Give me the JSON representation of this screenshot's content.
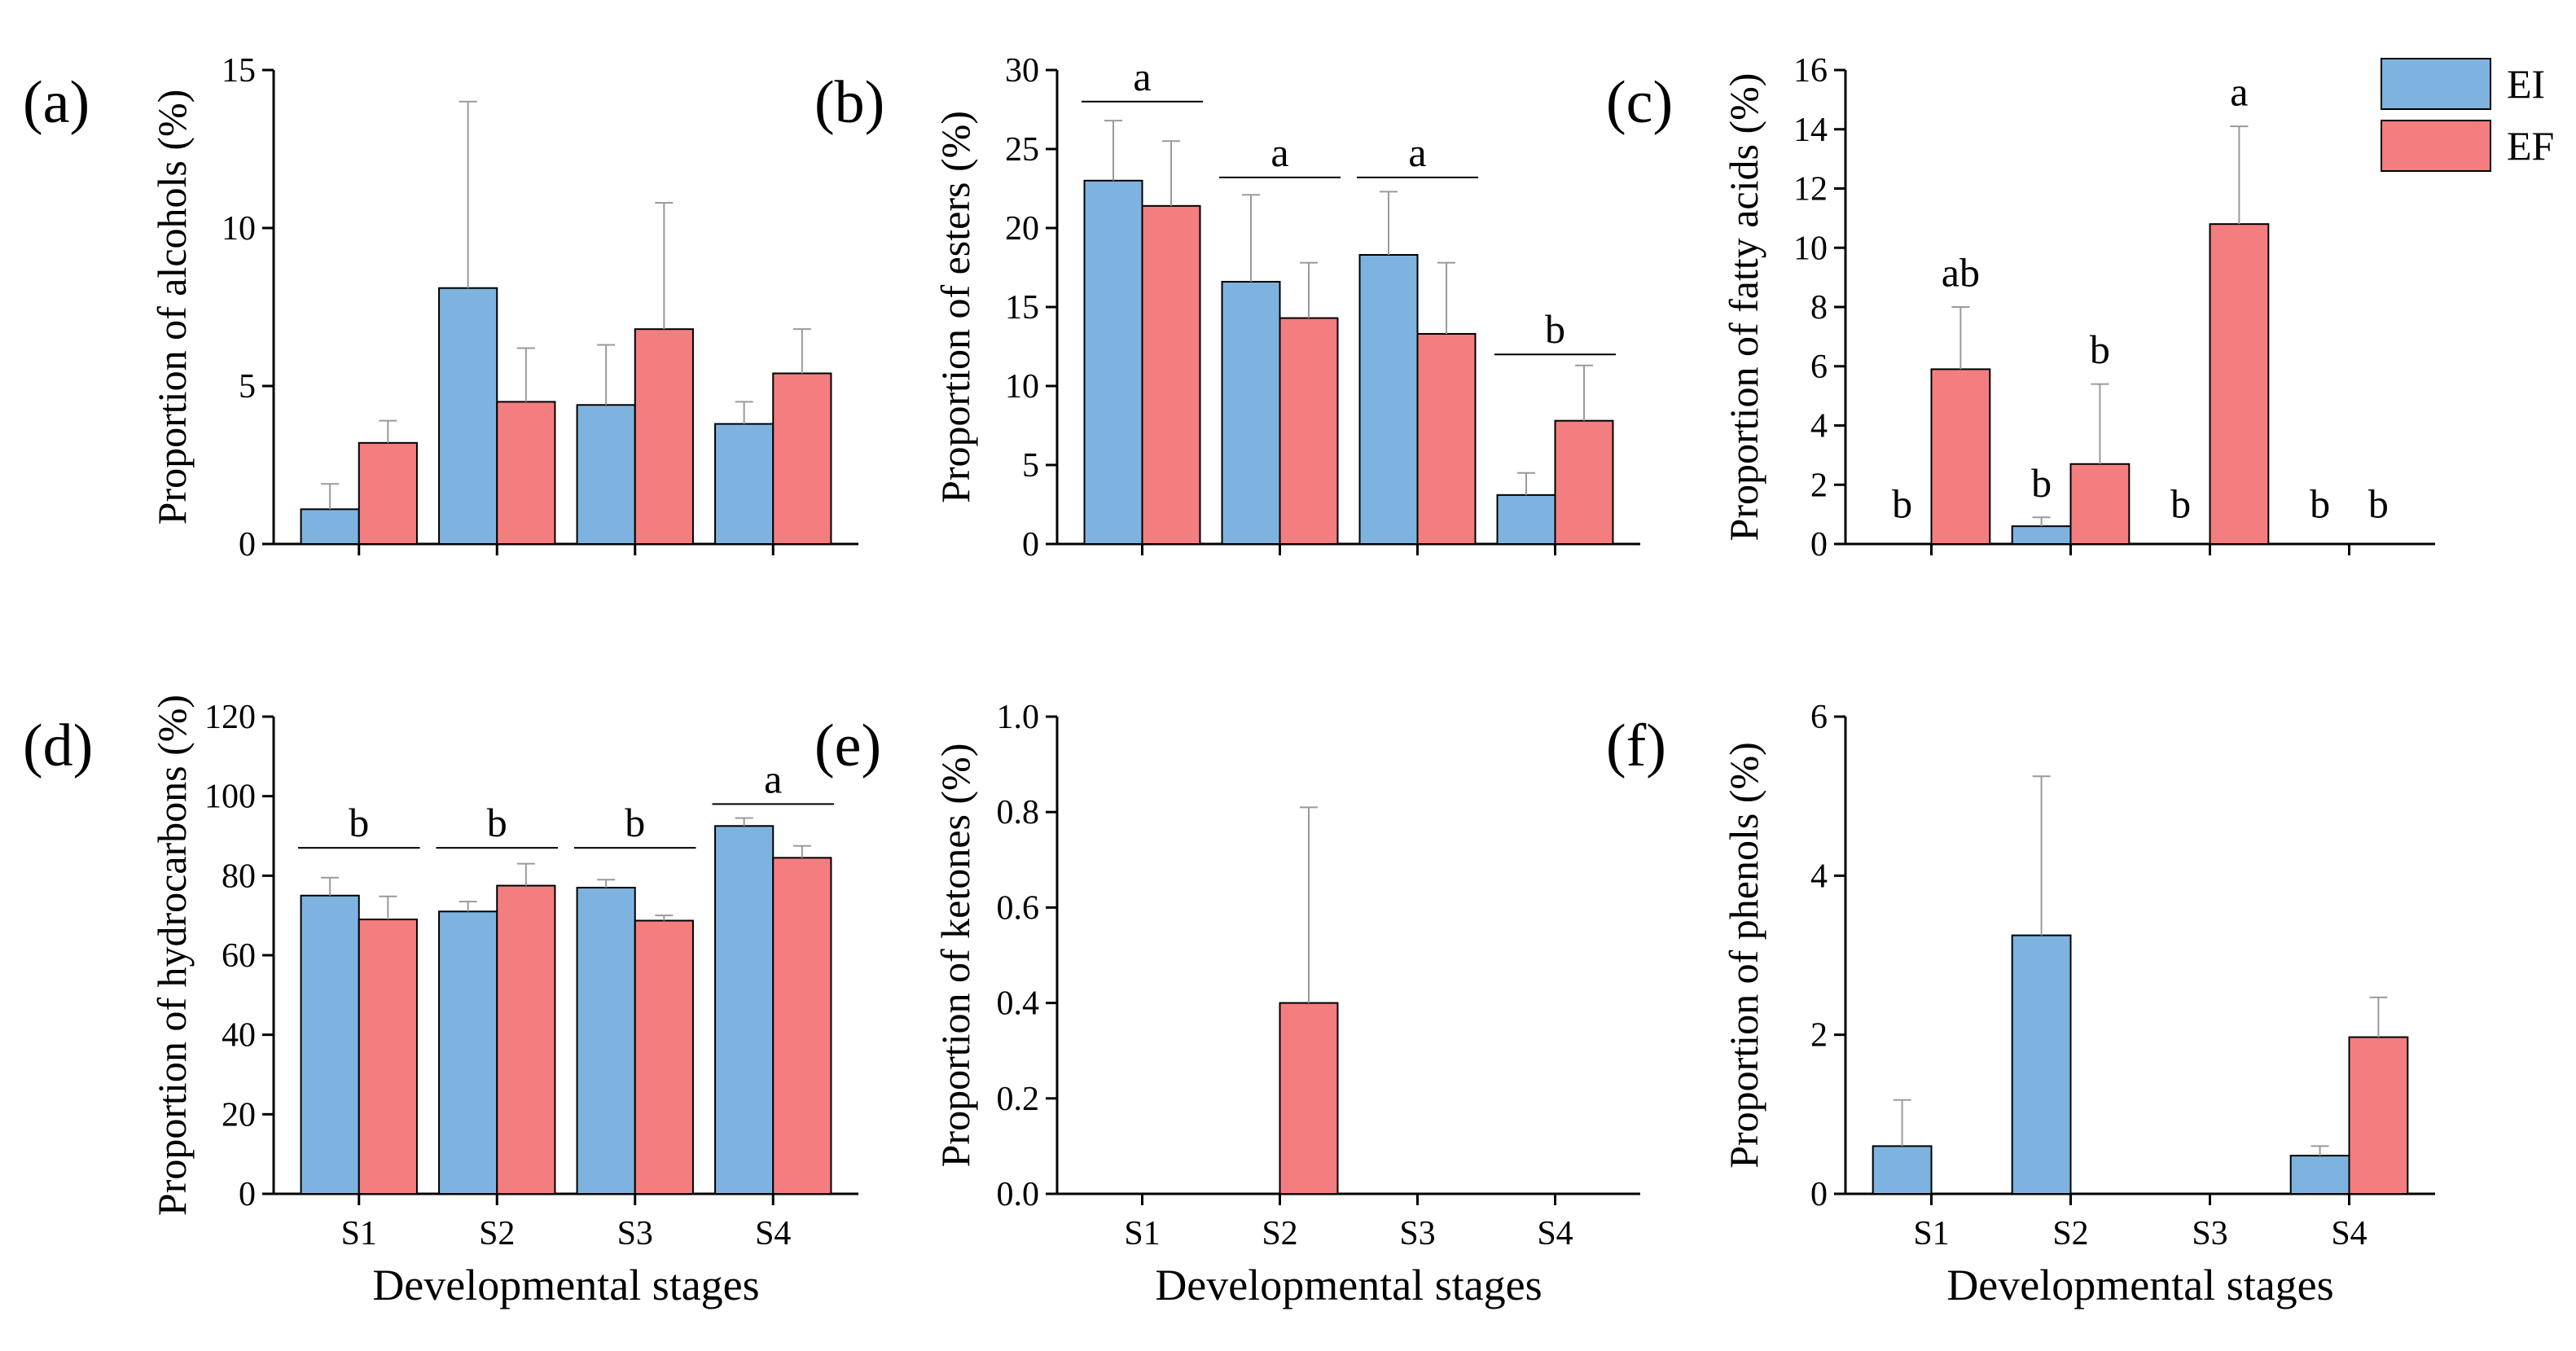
{
  "legend": {
    "entries": [
      {
        "label": "EI",
        "color": "#7fb3df"
      },
      {
        "label": "EF",
        "color": "#f47d7f"
      }
    ]
  },
  "chart_data": [
    {
      "type": "bar",
      "panel_label": "(a)",
      "categories": [
        "S1",
        "S2",
        "S3",
        "S4"
      ],
      "show_xticklabels": false,
      "xlabel": "",
      "ylabel": "Proportion of alcohols (%)",
      "ylim": [
        0,
        15
      ],
      "yticks": [
        "0",
        "5",
        "10",
        "15"
      ],
      "series": [
        {
          "name": "EI",
          "values": [
            1.1,
            8.1,
            4.4,
            3.8
          ],
          "errors": [
            0.8,
            5.9,
            1.9,
            0.7
          ]
        },
        {
          "name": "EF",
          "values": [
            3.2,
            4.5,
            6.8,
            5.4
          ],
          "errors": [
            0.7,
            1.7,
            4.0,
            1.4
          ]
        }
      ],
      "annotations": []
    },
    {
      "type": "bar",
      "panel_label": "(b)",
      "categories": [
        "S1",
        "S2",
        "S3",
        "S4"
      ],
      "show_xticklabels": false,
      "xlabel": "",
      "ylabel": "Proportion of esters (%)",
      "ylim": [
        0,
        30
      ],
      "yticks": [
        "0",
        "5",
        "10",
        "15",
        "20",
        "25",
        "30"
      ],
      "series": [
        {
          "name": "EI",
          "values": [
            23.0,
            16.6,
            18.3,
            3.1
          ],
          "errors": [
            3.8,
            5.5,
            4.0,
            1.4
          ]
        },
        {
          "name": "EF",
          "values": [
            21.4,
            14.3,
            13.3,
            7.8
          ],
          "errors": [
            4.1,
            3.5,
            4.5,
            3.5
          ]
        }
      ],
      "annotations": [
        {
          "category": 0,
          "text": "a",
          "value": 28.0,
          "bracket": true
        },
        {
          "category": 1,
          "text": "a",
          "value": 23.2,
          "bracket": true
        },
        {
          "category": 2,
          "text": "a",
          "value": 23.2,
          "bracket": true
        },
        {
          "category": 3,
          "text": "b",
          "value": 12.0,
          "bracket": true
        }
      ]
    },
    {
      "type": "bar",
      "panel_label": "(c)",
      "categories": [
        "S1",
        "S2",
        "S3",
        "S4"
      ],
      "show_xticklabels": false,
      "xlabel": "",
      "ylabel": "Proportion of fatty acids (%)",
      "ylim": [
        0,
        16
      ],
      "yticks": [
        "0",
        "2",
        "4",
        "6",
        "8",
        "10",
        "12",
        "14",
        "16"
      ],
      "series": [
        {
          "name": "EI",
          "values": [
            0,
            0.6,
            0,
            0
          ],
          "errors": [
            0,
            0.3,
            0,
            0
          ]
        },
        {
          "name": "EF",
          "values": [
            5.9,
            2.7,
            10.8,
            0
          ],
          "errors": [
            2.1,
            2.7,
            3.3,
            0
          ]
        }
      ],
      "annotations": [
        {
          "category": 0,
          "series": 0,
          "text": "b",
          "value": 0.9
        },
        {
          "category": 0,
          "series": 1,
          "text": "ab",
          "value": 8.7
        },
        {
          "category": 1,
          "series": 0,
          "text": "b",
          "value": 1.6
        },
        {
          "category": 1,
          "series": 1,
          "text": "b",
          "value": 6.1
        },
        {
          "category": 2,
          "series": 0,
          "text": "b",
          "value": 0.9
        },
        {
          "category": 2,
          "series": 1,
          "text": "a",
          "value": 14.8
        },
        {
          "category": 3,
          "series": 0,
          "text": "b",
          "value": 0.9
        },
        {
          "category": 3,
          "series": 1,
          "text": "b",
          "value": 0.9
        }
      ]
    },
    {
      "type": "bar",
      "panel_label": "(d)",
      "categories": [
        "S1",
        "S2",
        "S3",
        "S4"
      ],
      "show_xticklabels": true,
      "xlabel": "Developmental stages",
      "ylabel": "Proportion of hydrocarbons (%)",
      "ylim": [
        0,
        120
      ],
      "yticks": [
        "0",
        "20",
        "40",
        "60",
        "80",
        "100",
        "120"
      ],
      "series": [
        {
          "name": "EI",
          "values": [
            75.0,
            71.0,
            77.0,
            92.5
          ],
          "errors": [
            4.5,
            2.5,
            2.0,
            2.0
          ]
        },
        {
          "name": "EF",
          "values": [
            69.0,
            77.5,
            68.7,
            84.5
          ],
          "errors": [
            5.8,
            5.5,
            1.3,
            3.0
          ]
        }
      ],
      "annotations": [
        {
          "category": 0,
          "text": "b",
          "value": 87.0,
          "bracket": true
        },
        {
          "category": 1,
          "text": "b",
          "value": 87.0,
          "bracket": true
        },
        {
          "category": 2,
          "text": "b",
          "value": 87.0,
          "bracket": true
        },
        {
          "category": 3,
          "text": "a",
          "value": 98.0,
          "bracket": true
        }
      ]
    },
    {
      "type": "bar",
      "panel_label": "(e)",
      "categories": [
        "S1",
        "S2",
        "S3",
        "S4"
      ],
      "show_xticklabels": true,
      "xlabel": "Developmental stages",
      "ylabel": "Proportion of ketones (%)",
      "ylim": [
        0,
        1.0
      ],
      "yticks": [
        "0.0",
        "0.2",
        "0.4",
        "0.6",
        "0.8",
        "1.0"
      ],
      "series": [
        {
          "name": "EI",
          "values": [
            0,
            0,
            0,
            0
          ],
          "errors": [
            0,
            0,
            0,
            0
          ]
        },
        {
          "name": "EF",
          "values": [
            0,
            0.4,
            0,
            0
          ],
          "errors": [
            0,
            0.41,
            0,
            0
          ]
        }
      ],
      "annotations": []
    },
    {
      "type": "bar",
      "panel_label": "(f)",
      "categories": [
        "S1",
        "S2",
        "S3",
        "S4"
      ],
      "show_xticklabels": true,
      "xlabel": "Developmental stages",
      "ylabel": "Proportion of phenols (%)",
      "ylim": [
        0,
        6
      ],
      "yticks": [
        "0",
        "2",
        "4",
        "6"
      ],
      "series": [
        {
          "name": "EI",
          "values": [
            0.6,
            3.25,
            0,
            0.48
          ],
          "errors": [
            0.58,
            2.0,
            0,
            0.12
          ]
        },
        {
          "name": "EF",
          "values": [
            0,
            0,
            0,
            1.97
          ],
          "errors": [
            0,
            0,
            0,
            0.5
          ]
        }
      ],
      "annotations": []
    }
  ]
}
